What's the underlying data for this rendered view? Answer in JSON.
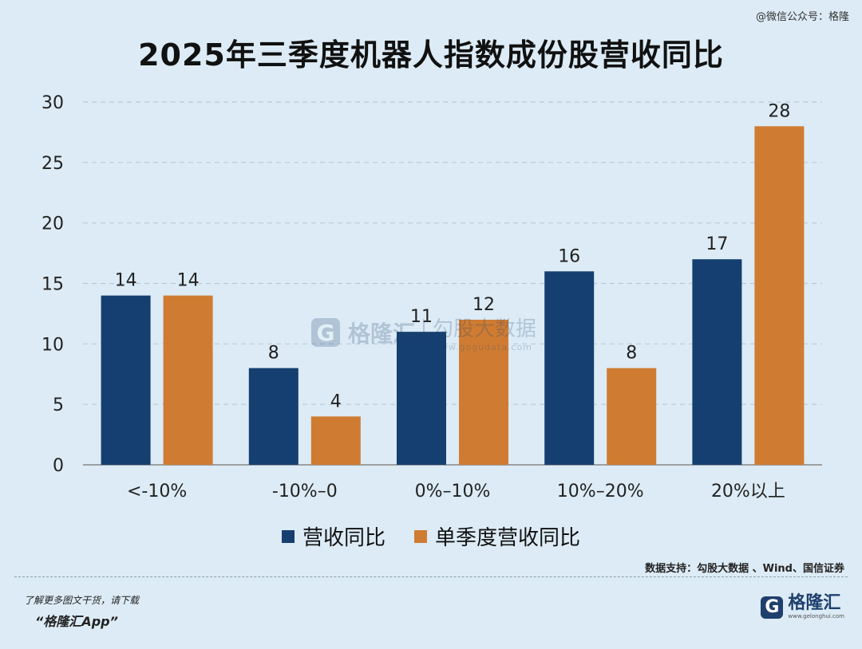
{
  "credit": "@微信公众号：格隆",
  "chart_data": {
    "type": "bar",
    "title": "2025年三季度机器人指数成份股营收同比",
    "categories": [
      "<-10%",
      "-10%–0",
      "0%–10%",
      "10%–20%",
      "20%以上"
    ],
    "series": [
      {
        "name": "营收同比",
        "values": [
          14,
          8,
          11,
          16,
          17
        ],
        "color": "#153f70"
      },
      {
        "name": "单季度营收同比",
        "values": [
          14,
          4,
          12,
          8,
          28
        ],
        "color": "#cf7c32"
      }
    ],
    "ylim": [
      0,
      30
    ],
    "yticks": [
      0,
      5,
      10,
      15,
      20,
      25,
      30
    ],
    "grid": true,
    "legend_position": "bottom"
  },
  "source": "数据支持：勾股大数据 、Wind、国信证券",
  "promo": "了解更多图文干货，请下载",
  "app": "“格隆汇App”",
  "logo": {
    "mark": "G",
    "name": "格隆汇",
    "url": "www.gelonghui.com"
  },
  "watermark": {
    "mark": "G",
    "name": "格隆汇",
    "text": "勾股大数据",
    "url": "www.gogudata.com"
  }
}
